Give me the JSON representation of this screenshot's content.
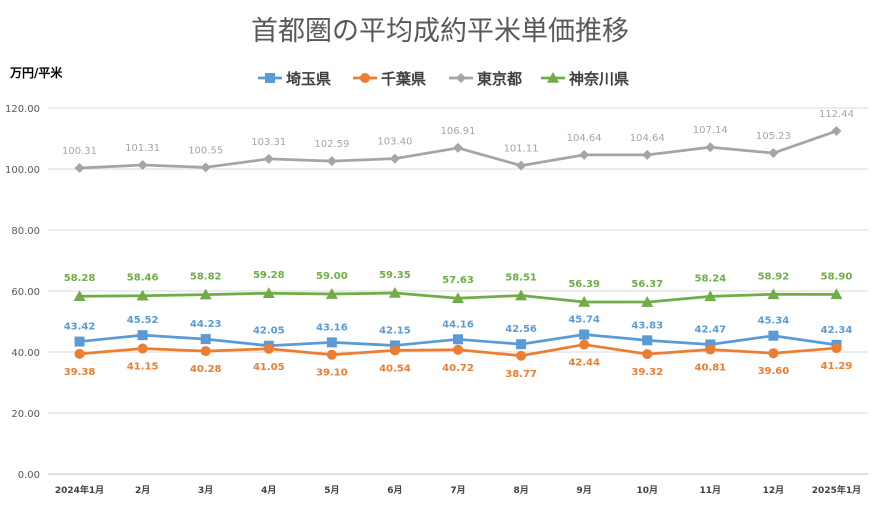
{
  "chart_data": {
    "type": "line",
    "title": "首都圏の平均成約平米単価推移",
    "ylabel": "万円/平米",
    "xlabel": "",
    "categories": [
      "2024年1月",
      "2月",
      "3月",
      "4月",
      "5月",
      "6月",
      "7月",
      "8月",
      "9月",
      "10月",
      "11月",
      "12月",
      "2025年1月"
    ],
    "ylim": [
      0,
      120
    ],
    "yticks": [
      "0.00",
      "20.00",
      "40.00",
      "60.00",
      "80.00",
      "100.00",
      "120.00"
    ],
    "grid": true,
    "legend_position": "top",
    "series": [
      {
        "name": "埼玉県",
        "color": "#5B9BD5",
        "marker": "square",
        "values": [
          43.42,
          45.52,
          44.23,
          42.05,
          43.16,
          42.15,
          44.16,
          42.56,
          45.74,
          43.83,
          42.47,
          45.34,
          42.34
        ],
        "labels": [
          "43.42",
          "45.52",
          "44.23",
          "42.05",
          "43.16",
          "42.15",
          "44.16",
          "42.56",
          "45.74",
          "43.83",
          "42.47",
          "45.34",
          "42.34"
        ]
      },
      {
        "name": "千葉県",
        "color": "#ED7D31",
        "marker": "circle",
        "values": [
          39.38,
          41.15,
          40.28,
          41.05,
          39.1,
          40.54,
          40.72,
          38.77,
          42.44,
          39.32,
          40.81,
          39.6,
          41.29
        ],
        "labels": [
          "39.38",
          "41.15",
          "40.28",
          "41.05",
          "39.10",
          "40.54",
          "40.72",
          "38.77",
          "42.44",
          "39.32",
          "40.81",
          "39.60",
          "41.29"
        ]
      },
      {
        "name": "東京都",
        "color": "#A5A5A5",
        "marker": "diamond",
        "values": [
          100.31,
          101.31,
          100.55,
          103.31,
          102.59,
          103.4,
          106.91,
          101.11,
          104.64,
          104.64,
          107.14,
          105.23,
          112.44
        ],
        "labels": [
          "100.31",
          "101.31",
          "100.55",
          "103.31",
          "102.59",
          "103.40",
          "106.91",
          "101.11",
          "104.64",
          "104.64",
          "107.14",
          "105.23",
          "112.44"
        ]
      },
      {
        "name": "神奈川県",
        "color": "#70AD47",
        "marker": "triangle",
        "values": [
          58.28,
          58.46,
          58.82,
          59.28,
          59.0,
          59.35,
          57.63,
          58.51,
          56.39,
          56.37,
          58.24,
          58.92,
          58.9
        ],
        "labels": [
          "58.28",
          "58.46",
          "58.82",
          "59.28",
          "59.00",
          "59.35",
          "57.63",
          "58.51",
          "56.39",
          "56.37",
          "58.24",
          "58.92",
          "58.90"
        ]
      }
    ]
  }
}
